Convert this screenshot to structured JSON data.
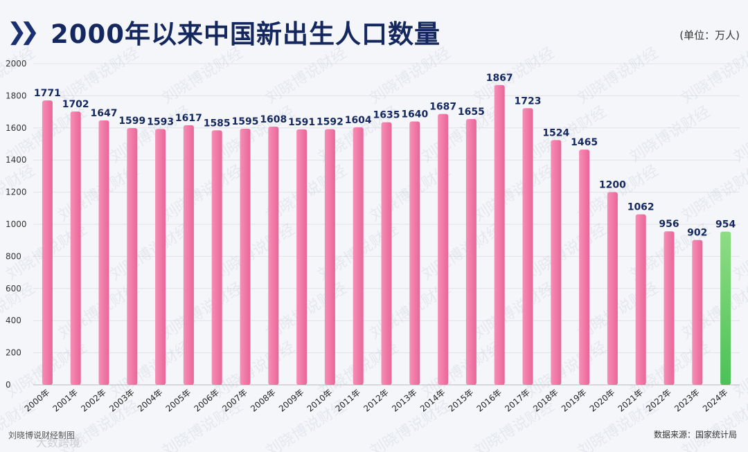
{
  "header": {
    "title": "2000年以来中国新出生人口数量",
    "unit": "(单位：万人)"
  },
  "footer": {
    "left_credit": "刘晓博说财经制图",
    "source": "数据来源：国家统计局",
    "bottom_watermark": "大数跨境"
  },
  "watermark": "刘晓博说财经",
  "colors": {
    "bar": "#f07aa5",
    "bar_highlight": "#4cc157",
    "title": "#14285f",
    "label": "#14285f"
  },
  "chart_data": {
    "type": "bar",
    "title": "2000年以来中国新出生人口数量",
    "ylabel": "万人",
    "ylim": [
      0,
      2000
    ],
    "yticks": [
      0,
      200,
      400,
      600,
      800,
      1000,
      1200,
      1400,
      1600,
      1800,
      2000
    ],
    "categories": [
      "2000年",
      "2001年",
      "2002年",
      "2003年",
      "2004年",
      "2005年",
      "2006年",
      "2007年",
      "2008年",
      "2009年",
      "2010年",
      "2011年",
      "2012年",
      "2013年",
      "2014年",
      "2015年",
      "2016年",
      "2017年",
      "2018年",
      "2019年",
      "2020年",
      "2021年",
      "2022年",
      "2023年",
      "2024年"
    ],
    "values": [
      1771,
      1702,
      1647,
      1599,
      1593,
      1617,
      1585,
      1595,
      1608,
      1591,
      1592,
      1604,
      1635,
      1640,
      1687,
      1655,
      1867,
      1723,
      1524,
      1465,
      1200,
      1062,
      956,
      902,
      954
    ],
    "highlight_index": 24,
    "grid": true
  }
}
